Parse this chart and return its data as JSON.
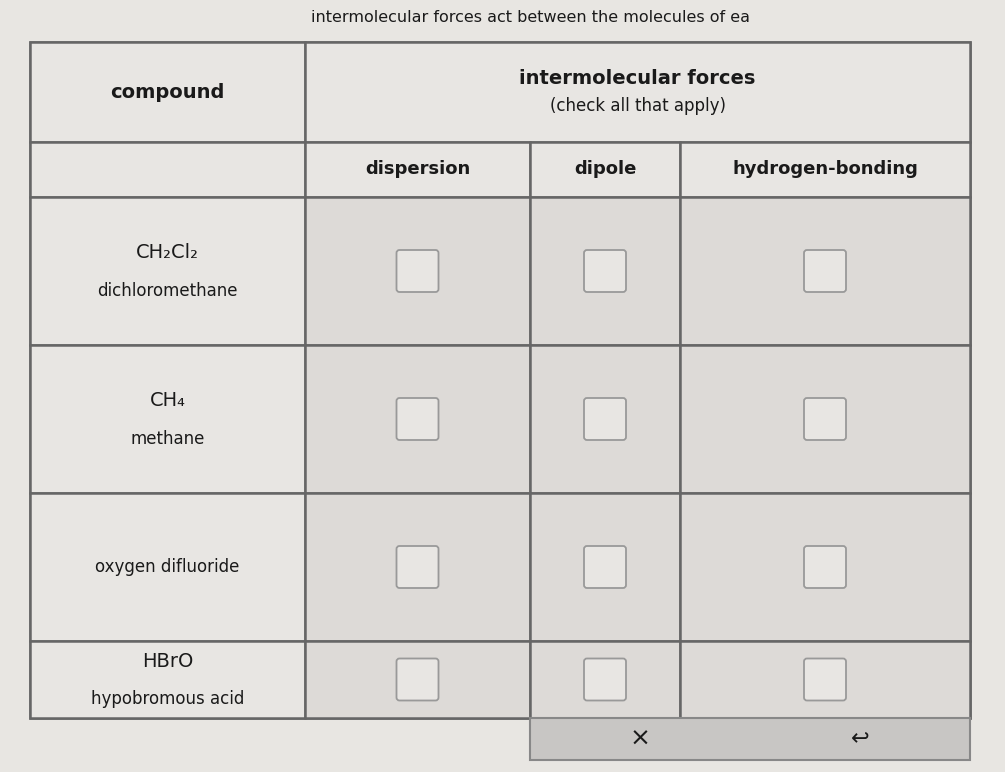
{
  "title_top": "intermolecular forces",
  "title_sub": "(check all that apply)",
  "col_header_left": "compound",
  "col_headers": [
    "dispersion",
    "dipole",
    "hydrogen-bonding"
  ],
  "rows": [
    {
      "line1": "CH₂Cl₂",
      "line2": "dichloromethane",
      "single": false
    },
    {
      "line1": "CH₄",
      "line2": "methane",
      "single": false
    },
    {
      "line1": "oxygen difluoride",
      "line2": "",
      "single": true
    },
    {
      "line1": "HBrO",
      "line2": "hypobromous acid",
      "single": false
    }
  ],
  "header_top_text": "intermolecular forces act between the molecules of ea",
  "figure_bg": "#d6d6d6",
  "page_bg": "#e8e6e2",
  "table_bg": "#eeeceb",
  "compound_cell_bg": "#e8e6e3",
  "checkbox_cell_bg": "#dddad7",
  "header_cell_bg": "#e8e6e3",
  "subheader_cell_bg": "#e8e6e3",
  "border_color": "#666666",
  "text_color": "#1a1a1a",
  "checkbox_edge": "#999999",
  "checkbox_face": "#e8e6e3",
  "bottom_btn_bg": "#c8c6c4",
  "bottom_btn_border": "#888888"
}
